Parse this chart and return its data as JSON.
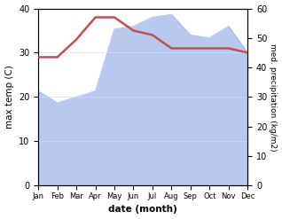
{
  "months": [
    "Jan",
    "Feb",
    "Mar",
    "Apr",
    "May",
    "Jun",
    "Jul",
    "Aug",
    "Sep",
    "Oct",
    "Nov",
    "Dec"
  ],
  "temperature": [
    29,
    29,
    33,
    38,
    38,
    35,
    34,
    31,
    31,
    31,
    31,
    30
  ],
  "precipitation": [
    32,
    28,
    30,
    32,
    53,
    54,
    57,
    58,
    51,
    50,
    54,
    45
  ],
  "temp_color": "#c0504d",
  "precip_fill_color": "#b8c8ee",
  "precip_line_color": "#9aaade",
  "temp_ylim": [
    0,
    40
  ],
  "precip_ylim": [
    0,
    60
  ],
  "temp_yticks": [
    0,
    10,
    20,
    30,
    40
  ],
  "precip_yticks": [
    0,
    10,
    20,
    30,
    40,
    50,
    60
  ],
  "xlabel": "date (month)",
  "ylabel_left": "max temp (C)",
  "ylabel_right": "med. precipitation (kg/m2)",
  "bg_color": "#ffffff",
  "fig_width": 3.18,
  "fig_height": 2.47,
  "dpi": 100
}
